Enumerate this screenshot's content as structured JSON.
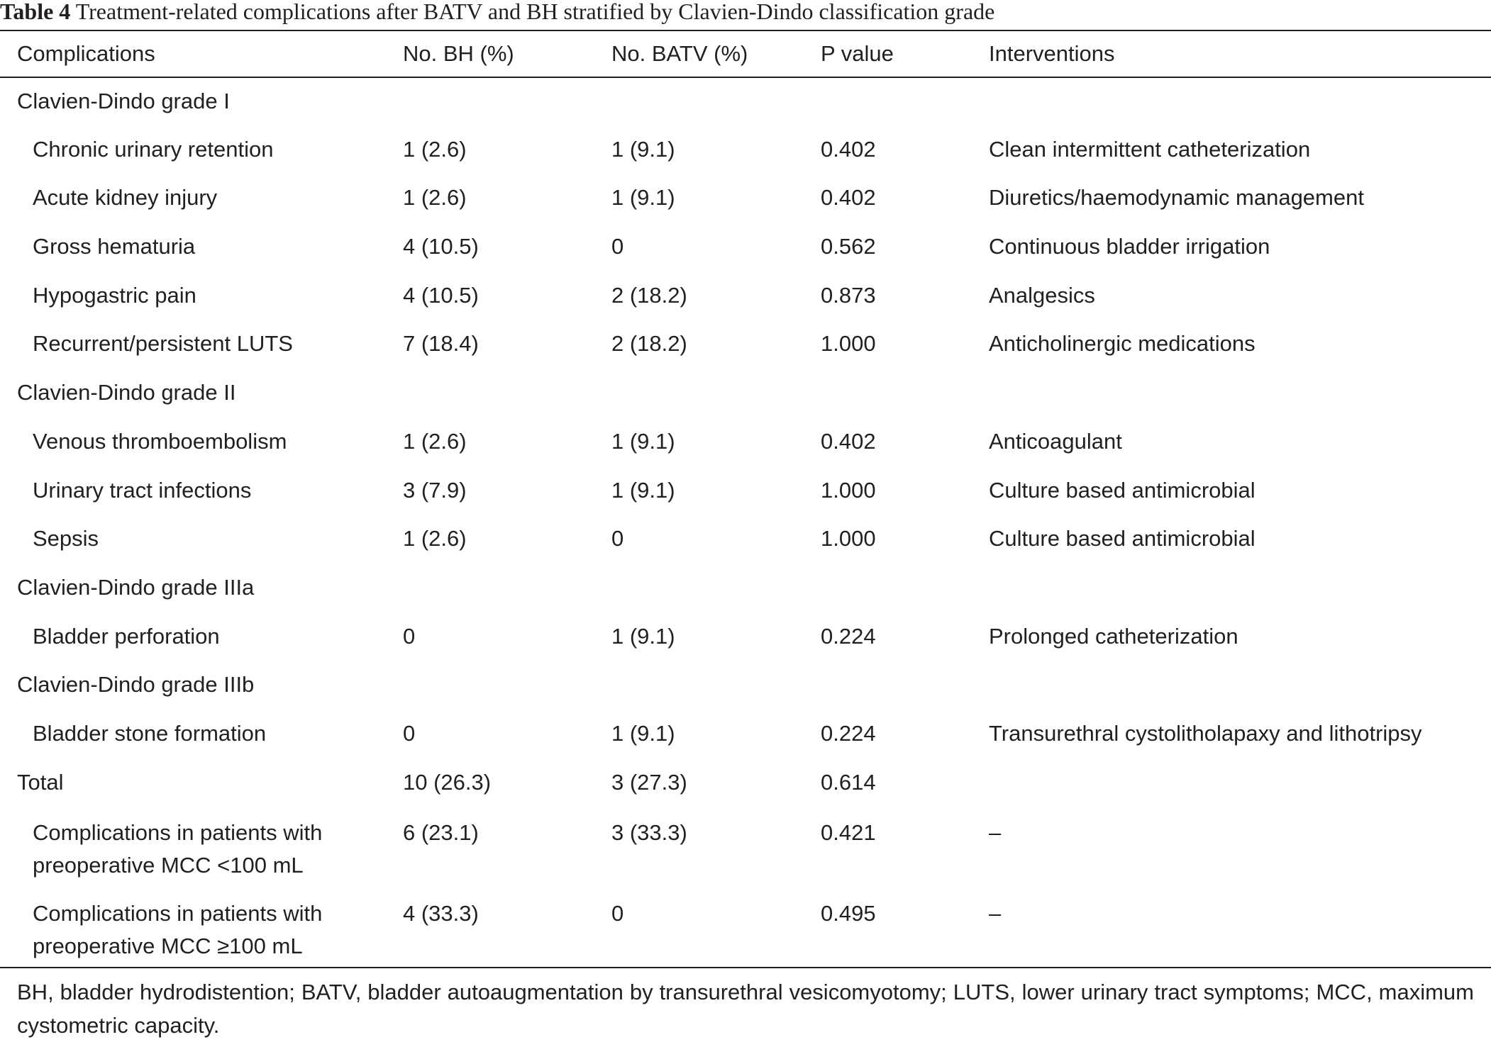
{
  "caption": {
    "label": "Table 4",
    "title": "Treatment-related complications after BATV and BH stratified by Clavien-Dindo classification grade"
  },
  "table": {
    "columns": [
      "Complications",
      "No. BH (%)",
      "No. BATV (%)",
      "P value",
      "Interventions"
    ],
    "rows": [
      {
        "kind": "group",
        "c0": "Clavien-Dindo grade I"
      },
      {
        "kind": "item",
        "c0": "Chronic urinary retention",
        "c1": "1 (2.6)",
        "c2": "1 (9.1)",
        "c3": "0.402",
        "c4": "Clean intermittent catheterization"
      },
      {
        "kind": "item",
        "c0": "Acute kidney injury",
        "c1": "1 (2.6)",
        "c2": "1 (9.1)",
        "c3": "0.402",
        "c4": "Diuretics/haemodynamic management"
      },
      {
        "kind": "item",
        "c0": "Gross hematuria",
        "c1": "4 (10.5)",
        "c2": "0",
        "c3": "0.562",
        "c4": "Continuous bladder irrigation"
      },
      {
        "kind": "item",
        "c0": "Hypogastric pain",
        "c1": "4 (10.5)",
        "c2": "2 (18.2)",
        "c3": "0.873",
        "c4": "Analgesics"
      },
      {
        "kind": "item",
        "c0": "Recurrent/persistent LUTS",
        "c1": "7 (18.4)",
        "c2": "2 (18.2)",
        "c3": "1.000",
        "c4": "Anticholinergic medications"
      },
      {
        "kind": "group",
        "c0": "Clavien-Dindo grade II"
      },
      {
        "kind": "item",
        "c0": "Venous thromboembolism",
        "c1": "1 (2.6)",
        "c2": "1 (9.1)",
        "c3": "0.402",
        "c4": "Anticoagulant"
      },
      {
        "kind": "item",
        "c0": "Urinary tract infections",
        "c1": "3 (7.9)",
        "c2": "1 (9.1)",
        "c3": "1.000",
        "c4": "Culture based antimicrobial"
      },
      {
        "kind": "item",
        "c0": "Sepsis",
        "c1": "1 (2.6)",
        "c2": "0",
        "c3": "1.000",
        "c4": "Culture based antimicrobial"
      },
      {
        "kind": "group",
        "c0": "Clavien-Dindo grade IIIa"
      },
      {
        "kind": "item",
        "c0": "Bladder perforation",
        "c1": "0",
        "c2": "1 (9.1)",
        "c3": "0.224",
        "c4": "Prolonged catheterization"
      },
      {
        "kind": "group",
        "c0": "Clavien-Dindo grade IIIb"
      },
      {
        "kind": "item",
        "c0": "Bladder stone formation",
        "c1": "0",
        "c2": "1 (9.1)",
        "c3": "0.224",
        "c4": "Transurethral cystolitholapaxy and lithotripsy"
      },
      {
        "kind": "total",
        "c0": "Total",
        "c1": "10 (26.3)",
        "c2": "3 (27.3)",
        "c3": "0.614",
        "c4": ""
      },
      {
        "kind": "item2",
        "c0a": "Complications in patients with",
        "c0b": "preoperative MCC <100 mL",
        "c1": "6 (23.1)",
        "c2": "3 (33.3)",
        "c3": "0.421",
        "c4": "–"
      },
      {
        "kind": "item2",
        "c0a": "Complications in patients with",
        "c0b": "preoperative MCC ≥100 mL",
        "c1": "4 (33.3)",
        "c2": "0",
        "c3": "0.495",
        "c4": "–"
      }
    ]
  },
  "footnote": "BH, bladder hydrodistention; BATV, bladder autoaugmentation by transurethral vesicomyotomy; LUTS, lower urinary tract symptoms; MCC, maximum cystometric capacity."
}
